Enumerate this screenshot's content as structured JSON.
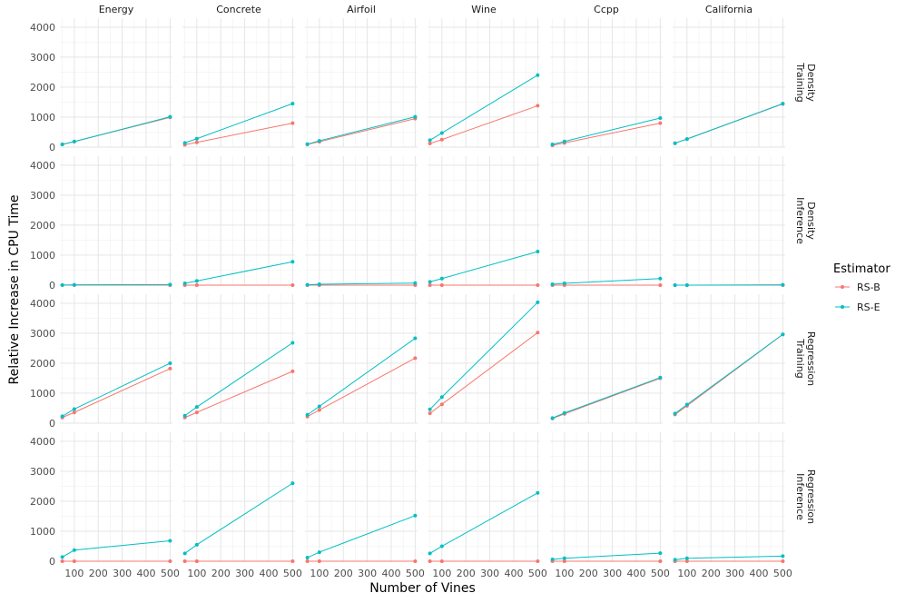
{
  "chart_data": {
    "type": "line",
    "title": "",
    "xlabel": "Number of Vines",
    "ylabel": "Relative Increase in CPU Time",
    "x": [
      50,
      100,
      500
    ],
    "xlim": [
      40,
      510
    ],
    "ylim": [
      0,
      4300
    ],
    "xticks": [
      100,
      200,
      300,
      400,
      500
    ],
    "yticks": [
      0,
      1000,
      2000,
      3000,
      4000
    ],
    "grid": true,
    "legend": {
      "title": "Estimator",
      "position": "right",
      "entries": [
        {
          "name": "RS-B",
          "color": "#F8766D"
        },
        {
          "name": "RS-E",
          "color": "#00BFC4"
        }
      ]
    },
    "columns": [
      "Energy",
      "Concrete",
      "Airfoil",
      "Wine",
      "Ccpp",
      "California"
    ],
    "rows": [
      {
        "label_lines": [
          "Density",
          "Training"
        ],
        "panels": [
          {
            "RS-B": [
              90,
              185,
              990
            ],
            "RS-E": [
              90,
              185,
              1010
            ]
          },
          {
            "RS-B": [
              80,
              160,
              800
            ],
            "RS-E": [
              140,
              280,
              1450
            ]
          },
          {
            "RS-B": [
              90,
              180,
              950
            ],
            "RS-E": [
              100,
              210,
              1010
            ]
          },
          {
            "RS-B": [
              120,
              250,
              1380
            ],
            "RS-E": [
              230,
              470,
              2400
            ]
          },
          {
            "RS-B": [
              60,
              140,
              800
            ],
            "RS-E": [
              90,
              190,
              970
            ]
          },
          {
            "RS-B": [
              130,
              270,
              1440
            ],
            "RS-E": [
              130,
              270,
              1450
            ]
          }
        ]
      },
      {
        "label_lines": [
          "Density",
          "Inference"
        ],
        "panels": [
          {
            "RS-B": [
              0,
              0,
              0
            ],
            "RS-E": [
              5,
              10,
              20
            ]
          },
          {
            "RS-B": [
              0,
              0,
              0
            ],
            "RS-E": [
              60,
              140,
              780
            ]
          },
          {
            "RS-B": [
              0,
              0,
              0
            ],
            "RS-E": [
              10,
              30,
              70
            ]
          },
          {
            "RS-B": [
              0,
              0,
              0
            ],
            "RS-E": [
              110,
              220,
              1120
            ]
          },
          {
            "RS-B": [
              0,
              0,
              0
            ],
            "RS-E": [
              30,
              60,
              220
            ]
          },
          {
            "RS-B": [
              0,
              0,
              0
            ],
            "RS-E": [
              0,
              0,
              10
            ]
          }
        ]
      },
      {
        "label_lines": [
          "Regression",
          "Training"
        ],
        "panels": [
          {
            "RS-B": [
              190,
              360,
              1820
            ],
            "RS-E": [
              230,
              470,
              2000
            ]
          },
          {
            "RS-B": [
              190,
              360,
              1730
            ],
            "RS-E": [
              250,
              540,
              2680
            ]
          },
          {
            "RS-B": [
              220,
              440,
              2170
            ],
            "RS-E": [
              280,
              560,
              2830
            ]
          },
          {
            "RS-B": [
              330,
              630,
              3020
            ],
            "RS-E": [
              460,
              870,
              4030
            ]
          },
          {
            "RS-B": [
              160,
              310,
              1500
            ],
            "RS-E": [
              170,
              340,
              1520
            ]
          },
          {
            "RS-B": [
              290,
              580,
              2960
            ],
            "RS-E": [
              320,
              620,
              2960
            ]
          }
        ]
      },
      {
        "label_lines": [
          "Regression",
          "Inference"
        ],
        "panels": [
          {
            "RS-B": [
              0,
              0,
              0
            ],
            "RS-E": [
              140,
              370,
              680
            ]
          },
          {
            "RS-B": [
              0,
              0,
              0
            ],
            "RS-E": [
              260,
              550,
              2600
            ]
          },
          {
            "RS-B": [
              0,
              0,
              0
            ],
            "RS-E": [
              120,
              300,
              1520
            ]
          },
          {
            "RS-B": [
              0,
              0,
              0
            ],
            "RS-E": [
              260,
              500,
              2280
            ]
          },
          {
            "RS-B": [
              0,
              0,
              0
            ],
            "RS-E": [
              60,
              100,
              270
            ]
          },
          {
            "RS-B": [
              0,
              0,
              0
            ],
            "RS-E": [
              50,
              100,
              170
            ]
          }
        ]
      }
    ]
  }
}
